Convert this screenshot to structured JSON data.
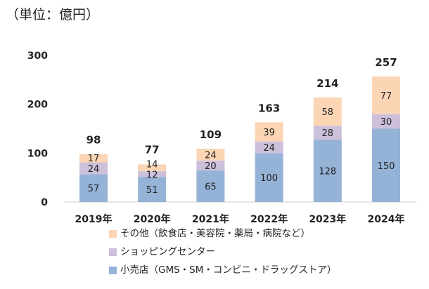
{
  "chart_data": {
    "type": "bar",
    "stacked": true,
    "unit_label": "（単位：億円）",
    "categories": [
      "2019年",
      "2020年",
      "2021年",
      "2022年",
      "2023年",
      "2024年"
    ],
    "series": [
      {
        "name": "小売店（GMS・SM・コンビニ・ドラッグストア）",
        "color": "#95B3D7",
        "values": [
          57,
          51,
          65,
          100,
          128,
          150
        ]
      },
      {
        "name": "ショッピングセンター",
        "color": "#CCC0DA",
        "values": [
          24,
          12,
          20,
          24,
          28,
          30
        ]
      },
      {
        "name": "その他（飲食店・美容院・薬局・病院など）",
        "color": "#FCD5B5",
        "values": [
          17,
          14,
          24,
          39,
          58,
          77
        ]
      }
    ],
    "totals": [
      98,
      77,
      109,
      163,
      214,
      257
    ],
    "yticks": [
      0,
      100,
      200,
      300
    ],
    "ylim": [
      0,
      300
    ],
    "grid": false,
    "legend_position": "bottom"
  }
}
